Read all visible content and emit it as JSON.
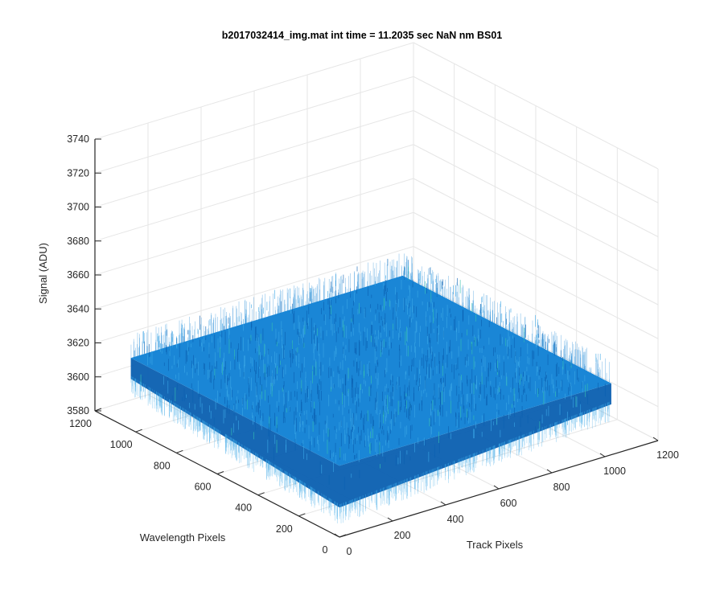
{
  "chart_data": {
    "type": "surface",
    "title": "b2017032414_img.mat int time = 11.2035 sec  NaN nm BS01",
    "xlabel": "Track Pixels",
    "ylabel": "Wavelength Pixels",
    "zlabel": "Signal (ADU)",
    "xlim": [
      0,
      1200
    ],
    "ylim": [
      0,
      1200
    ],
    "zlim": [
      3580,
      3740
    ],
    "x_ticks": [
      0,
      200,
      400,
      600,
      800,
      1000,
      1200
    ],
    "y_ticks": [
      0,
      200,
      400,
      600,
      800,
      1000,
      1200
    ],
    "z_ticks": [
      3580,
      3600,
      3620,
      3640,
      3660,
      3680,
      3700,
      3720,
      3740
    ],
    "x_tick_labels": [
      "0",
      "200",
      "400",
      "600",
      "800",
      "1000",
      "1200"
    ],
    "y_tick_labels": [
      "0",
      "200",
      "400",
      "600",
      "800",
      "1000",
      "1200"
    ],
    "z_tick_labels": [
      "3580",
      "3600",
      "3620",
      "3640",
      "3660",
      "3680",
      "3700",
      "3720",
      "3740"
    ],
    "surface": {
      "x_extent": [
        0,
        1024
      ],
      "y_extent": [
        0,
        1024
      ],
      "mean_signal": 3622,
      "noise_min": 3590,
      "noise_max": 3680
    },
    "grid": true,
    "colormap": "parula",
    "colors": {
      "surface_main": "#1a86d6",
      "surface_light": "#3aa7e6",
      "surface_dark": "#0a5fb0",
      "highlight": "#36c3b0"
    }
  }
}
